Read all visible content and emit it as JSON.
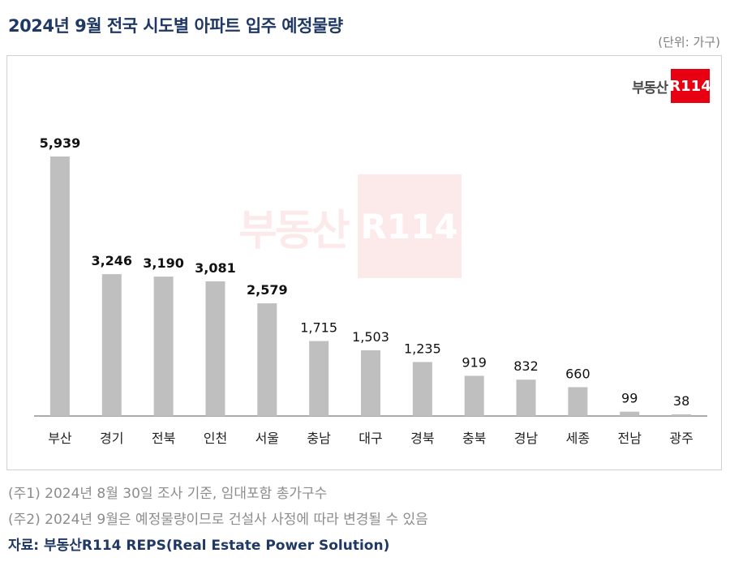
{
  "title": "2024년 9월 전국 시도별 아파트 입주 예정물량",
  "unit_label": "(단위: 가구)",
  "logo": {
    "text": "부동산",
    "box_text": "R114"
  },
  "watermark": {
    "text": "부동산",
    "box_text": "R114"
  },
  "notes": [
    "(주1) 2024년 8월 30일 조사 기준, 임대포함 총가구수",
    "(주2) 2024년 9월은 예정물량이므로 건설사 사정에 따라 변경될 수 있음"
  ],
  "source": "자료: 부동산R114 REPS(Real Estate Power Solution)",
  "colors": {
    "bar": "#bfbfbf",
    "title": "#1f3864",
    "logo_red": "#e60012",
    "axis": "#595959"
  },
  "chart_data": {
    "type": "bar",
    "title": "2024년 9월 전국 시도별 아파트 입주 예정물량",
    "xlabel": "",
    "ylabel": "",
    "unit": "(단위: 가구)",
    "ylim": [
      0,
      5939
    ],
    "grid": false,
    "categories": [
      "부산",
      "경기",
      "전북",
      "인천",
      "서울",
      "충남",
      "대구",
      "경북",
      "충북",
      "경남",
      "세종",
      "전남",
      "광주"
    ],
    "values": [
      5939,
      3246,
      3190,
      3081,
      2579,
      1715,
      1503,
      1235,
      919,
      832,
      660,
      99,
      38
    ],
    "value_labels": [
      "5,939",
      "3,246",
      "3,190",
      "3,081",
      "2,579",
      "1,715",
      "1,503",
      "1,235",
      "919",
      "832",
      "660",
      "99",
      "38"
    ],
    "bold_labels": [
      true,
      true,
      true,
      true,
      true,
      false,
      false,
      false,
      false,
      false,
      false,
      false,
      false
    ]
  }
}
